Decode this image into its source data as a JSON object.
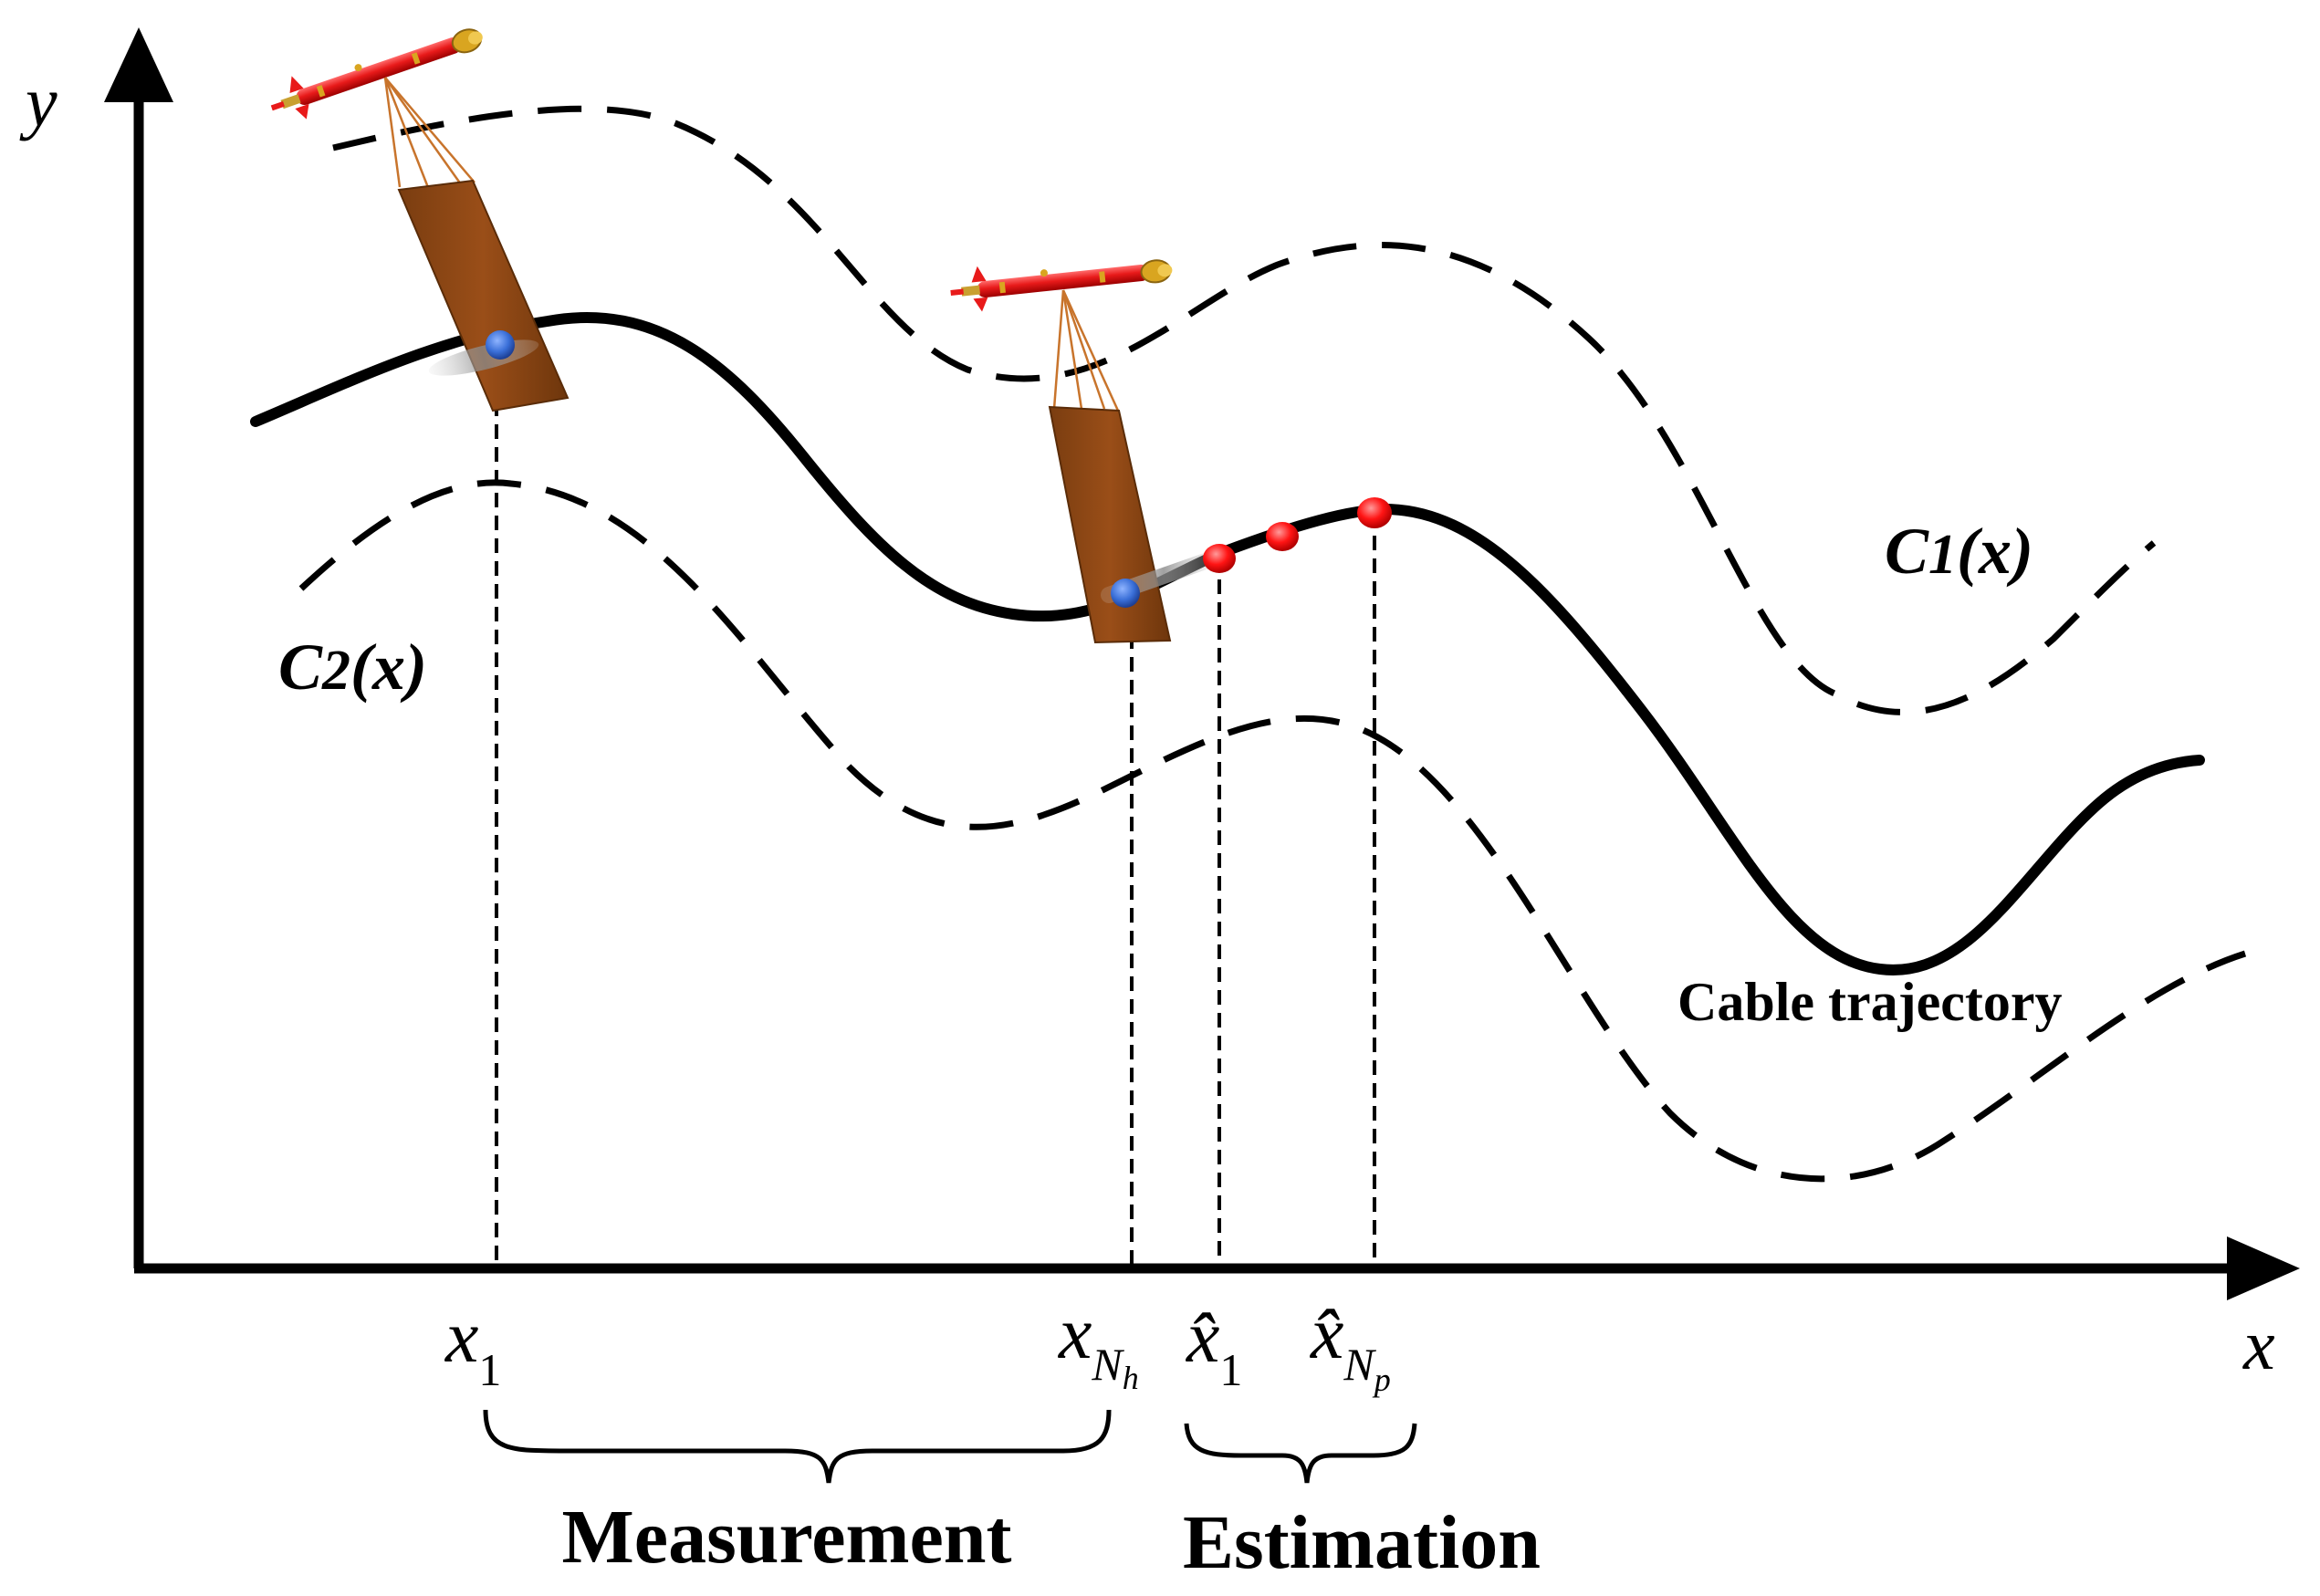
{
  "diagram": {
    "axes": {
      "x_label": "x",
      "y_label": "y"
    },
    "curves": {
      "upper_bound": {
        "name": "C",
        "sub": "1",
        "arg": "(x)"
      },
      "lower_bound": {
        "name": "C",
        "sub": "2",
        "arg": "(x)"
      },
      "trajectory_label": "Cable trajectory"
    },
    "ticks": {
      "x1": {
        "base": "x",
        "sub": "1"
      },
      "xNh": {
        "base": "x",
        "sub": "N",
        "subsub": "h"
      },
      "xhat1": {
        "base": "x̂",
        "sub": "1"
      },
      "xhatNp": {
        "base": "x̂",
        "sub": "N",
        "subsub": "p"
      }
    },
    "groups": {
      "measurement": "Measurement",
      "estimation": "Estimation"
    },
    "colors": {
      "trajectory": "#000000",
      "measured_point": "#3a6fd8",
      "estimated_point": "#ff0000",
      "vehicle_body": "#e81a1a",
      "sensor_panel": "#8b4513"
    },
    "icons": [
      "auv-vehicle-icon",
      "sensor-panel-icon"
    ]
  }
}
